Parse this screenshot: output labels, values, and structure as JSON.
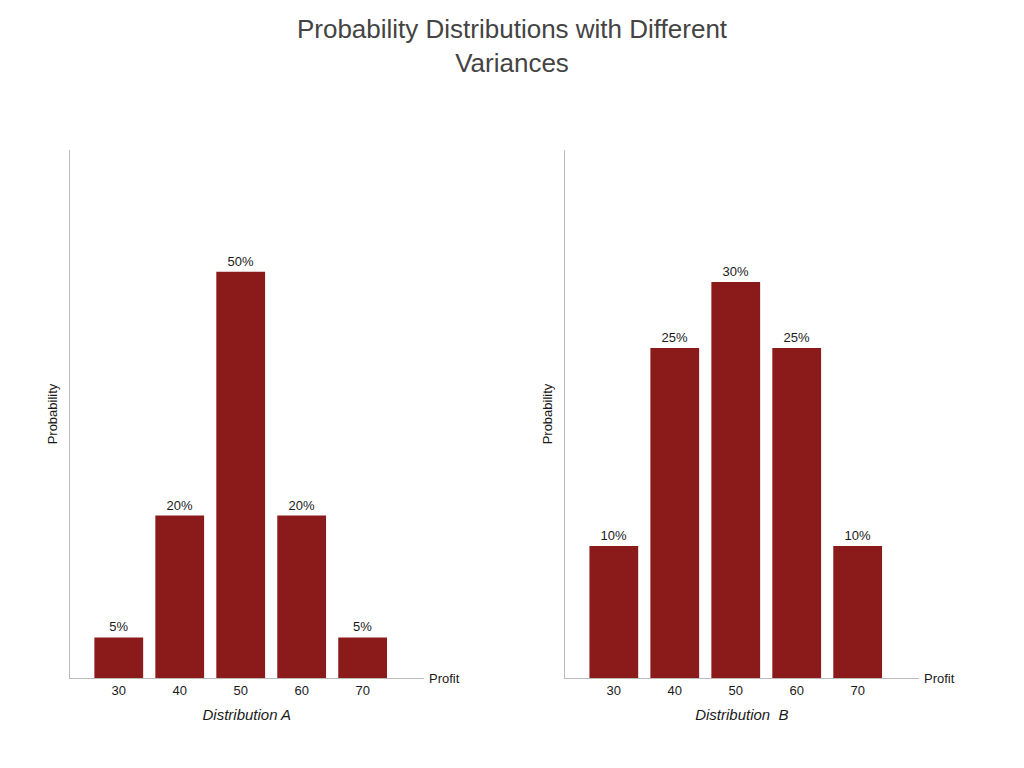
{
  "title": "Probability Distributions with Different\nVariances",
  "chart_data": [
    {
      "type": "bar",
      "categories": [
        30,
        40,
        50,
        60,
        70
      ],
      "values": [
        5,
        20,
        50,
        20,
        5
      ],
      "value_labels": [
        "5%",
        "20%",
        "50%",
        "20%",
        "5%"
      ],
      "data_labels": true,
      "color": "#8B1A1A",
      "xlabel": "Distribution A",
      "ylabel": "Probability",
      "annotations": [
        "Profit"
      ],
      "xlim": [
        22,
        80
      ],
      "xticks": [
        30,
        40,
        50,
        60,
        70
      ],
      "ylim": [
        0,
        65
      ],
      "yticks": [],
      "tick_labels": "x",
      "grid": false
    },
    {
      "type": "bar",
      "categories": [
        30,
        40,
        50,
        60,
        70
      ],
      "values": [
        10,
        25,
        30,
        25,
        10
      ],
      "value_labels": [
        "10%",
        "25%",
        "30%",
        "25%",
        "10%"
      ],
      "data_labels": true,
      "color": "#8B1A1A",
      "xlabel": "Distribution  B",
      "ylabel": "Probability",
      "annotations": [
        "Profit"
      ],
      "xlim": [
        22,
        80
      ],
      "xticks": [
        30,
        40,
        50,
        60,
        70
      ],
      "ylim": [
        0,
        40
      ],
      "yticks": [],
      "tick_labels": "x",
      "grid": false
    }
  ]
}
